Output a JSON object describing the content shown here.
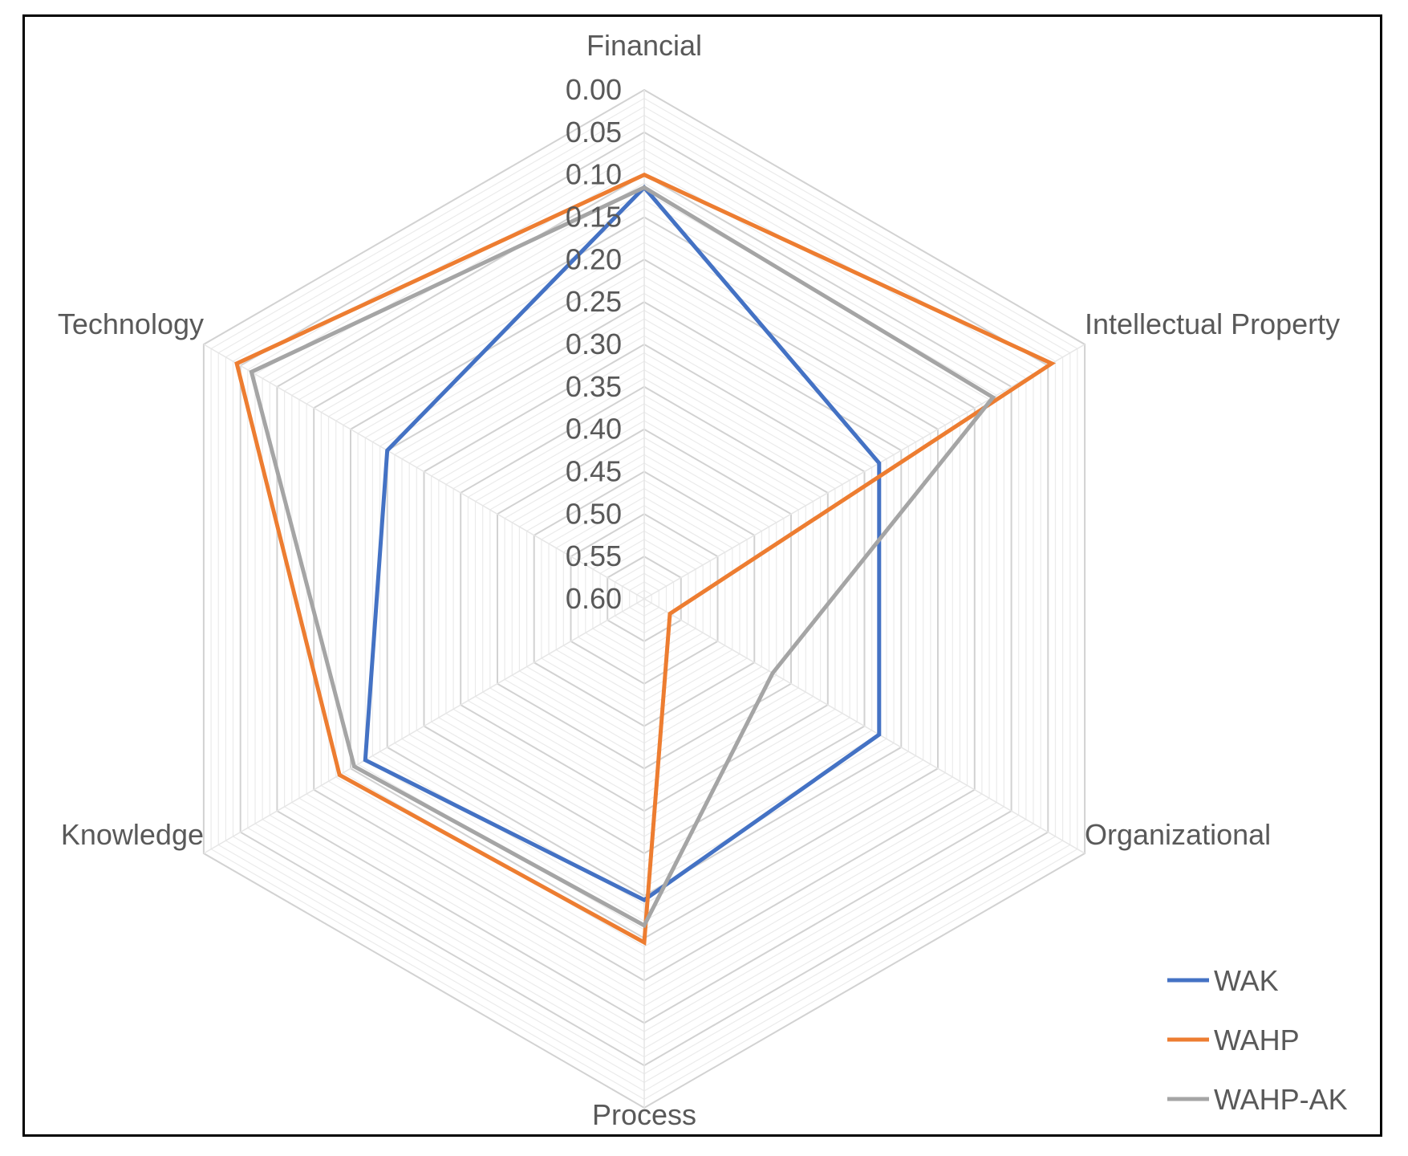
{
  "chart_data": {
    "type": "radar",
    "title": "",
    "categories": [
      "Financial",
      "Intellectual Property",
      "Organizational",
      "Process",
      "Knowledge",
      "Technology"
    ],
    "axis": {
      "min": 0.0,
      "max": 0.6,
      "reversed": true,
      "major_step": 0.05,
      "minor_step": 0.01,
      "tick_labels": [
        "0.00",
        "0.05",
        "0.10",
        "0.15",
        "0.20",
        "0.25",
        "0.30",
        "0.35",
        "0.40",
        "0.45",
        "0.50",
        "0.55",
        "0.60"
      ]
    },
    "grid": true,
    "legend_position": "bottom-right",
    "series": [
      {
        "name": "WAK",
        "color": "#4472C4",
        "values": [
          0.115,
          0.28,
          0.28,
          0.245,
          0.22,
          0.25
        ]
      },
      {
        "name": "WAHP",
        "color": "#ED7D31",
        "values": [
          0.1,
          0.045,
          0.565,
          0.195,
          0.185,
          0.045
        ]
      },
      {
        "name": "WAHP-AK",
        "color": "#A5A5A5",
        "values": [
          0.115,
          0.125,
          0.425,
          0.215,
          0.205,
          0.065
        ]
      }
    ]
  }
}
